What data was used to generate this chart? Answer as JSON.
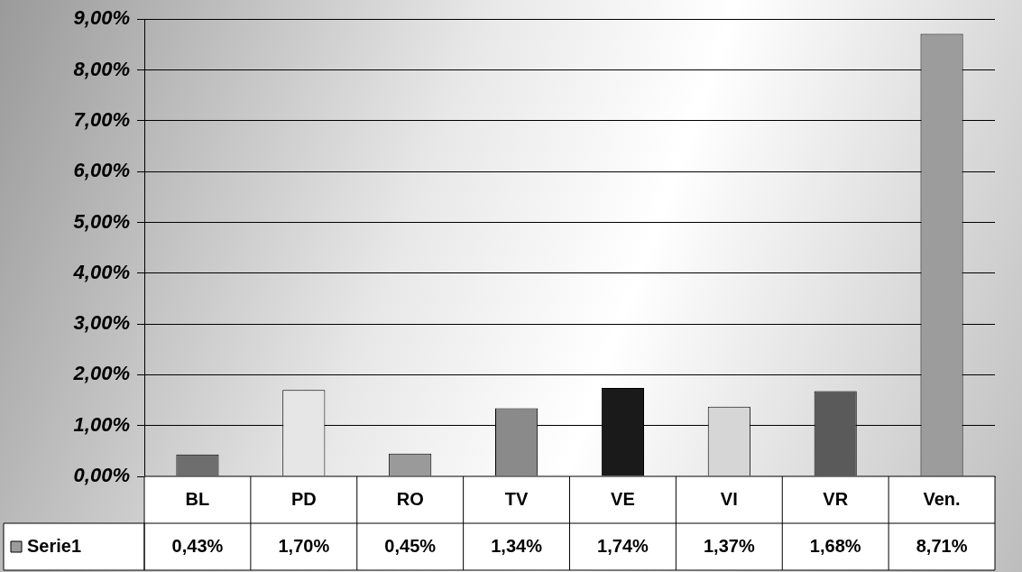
{
  "chart_data": {
    "type": "bar",
    "categories": [
      "BL",
      "PD",
      "RO",
      "TV",
      "VE",
      "VI",
      "VR",
      "Ven."
    ],
    "series": [
      {
        "name": "Serie1",
        "values": [
          0.43,
          1.7,
          0.45,
          1.34,
          1.74,
          1.37,
          1.68,
          8.71
        ],
        "colors": [
          "#6e6e6e",
          "#e6e6e6",
          "#9a9a9a",
          "#8a8a8a",
          "#1a1a1a",
          "#d6d6d6",
          "#5a5a5a",
          "#9c9c9c"
        ],
        "value_labels": [
          "0,43%",
          "1,70%",
          "0,45%",
          "1,34%",
          "1,74%",
          "1,37%",
          "1,68%",
          "8,71%"
        ]
      }
    ],
    "ylim": [
      0,
      9
    ],
    "yticks": [
      {
        "value": 0,
        "label": "0,00%"
      },
      {
        "value": 1,
        "label": "1,00%"
      },
      {
        "value": 2,
        "label": "2,00%"
      },
      {
        "value": 3,
        "label": "3,00%"
      },
      {
        "value": 4,
        "label": "4,00%"
      },
      {
        "value": 5,
        "label": "5,00%"
      },
      {
        "value": 6,
        "label": "6,00%"
      },
      {
        "value": 7,
        "label": "7,00%"
      },
      {
        "value": 8,
        "label": "8,00%"
      },
      {
        "value": 9,
        "label": "9,00%"
      }
    ],
    "grid": "y",
    "legend": "bottom left"
  }
}
